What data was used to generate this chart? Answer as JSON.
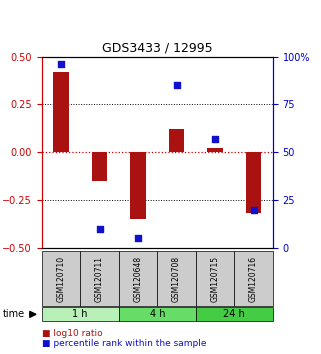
{
  "title": "GDS3433 / 12995",
  "samples": [
    "GSM120710",
    "GSM120711",
    "GSM120648",
    "GSM120708",
    "GSM120715",
    "GSM120716"
  ],
  "log10_ratio": [
    0.42,
    -0.15,
    -0.35,
    0.12,
    0.02,
    -0.32
  ],
  "percentile_rank": [
    96,
    10,
    5,
    85,
    57,
    20
  ],
  "groups": [
    {
      "label": "1 h",
      "samples": [
        0,
        1
      ],
      "color": "#b8f0b8"
    },
    {
      "label": "4 h",
      "samples": [
        2,
        3
      ],
      "color": "#66dd66"
    },
    {
      "label": "24 h",
      "samples": [
        4,
        5
      ],
      "color": "#44cc44"
    }
  ],
  "bar_color": "#aa1111",
  "dot_color": "#1111cc",
  "ylim_left": [
    -0.5,
    0.5
  ],
  "ylim_right": [
    0,
    100
  ],
  "yticks_left": [
    -0.5,
    -0.25,
    0,
    0.25,
    0.5
  ],
  "yticks_right": [
    0,
    25,
    50,
    75,
    100
  ],
  "bg_color": "#ffffff",
  "sample_box_color": "#cccccc",
  "zero_line_color": "#cc0000"
}
